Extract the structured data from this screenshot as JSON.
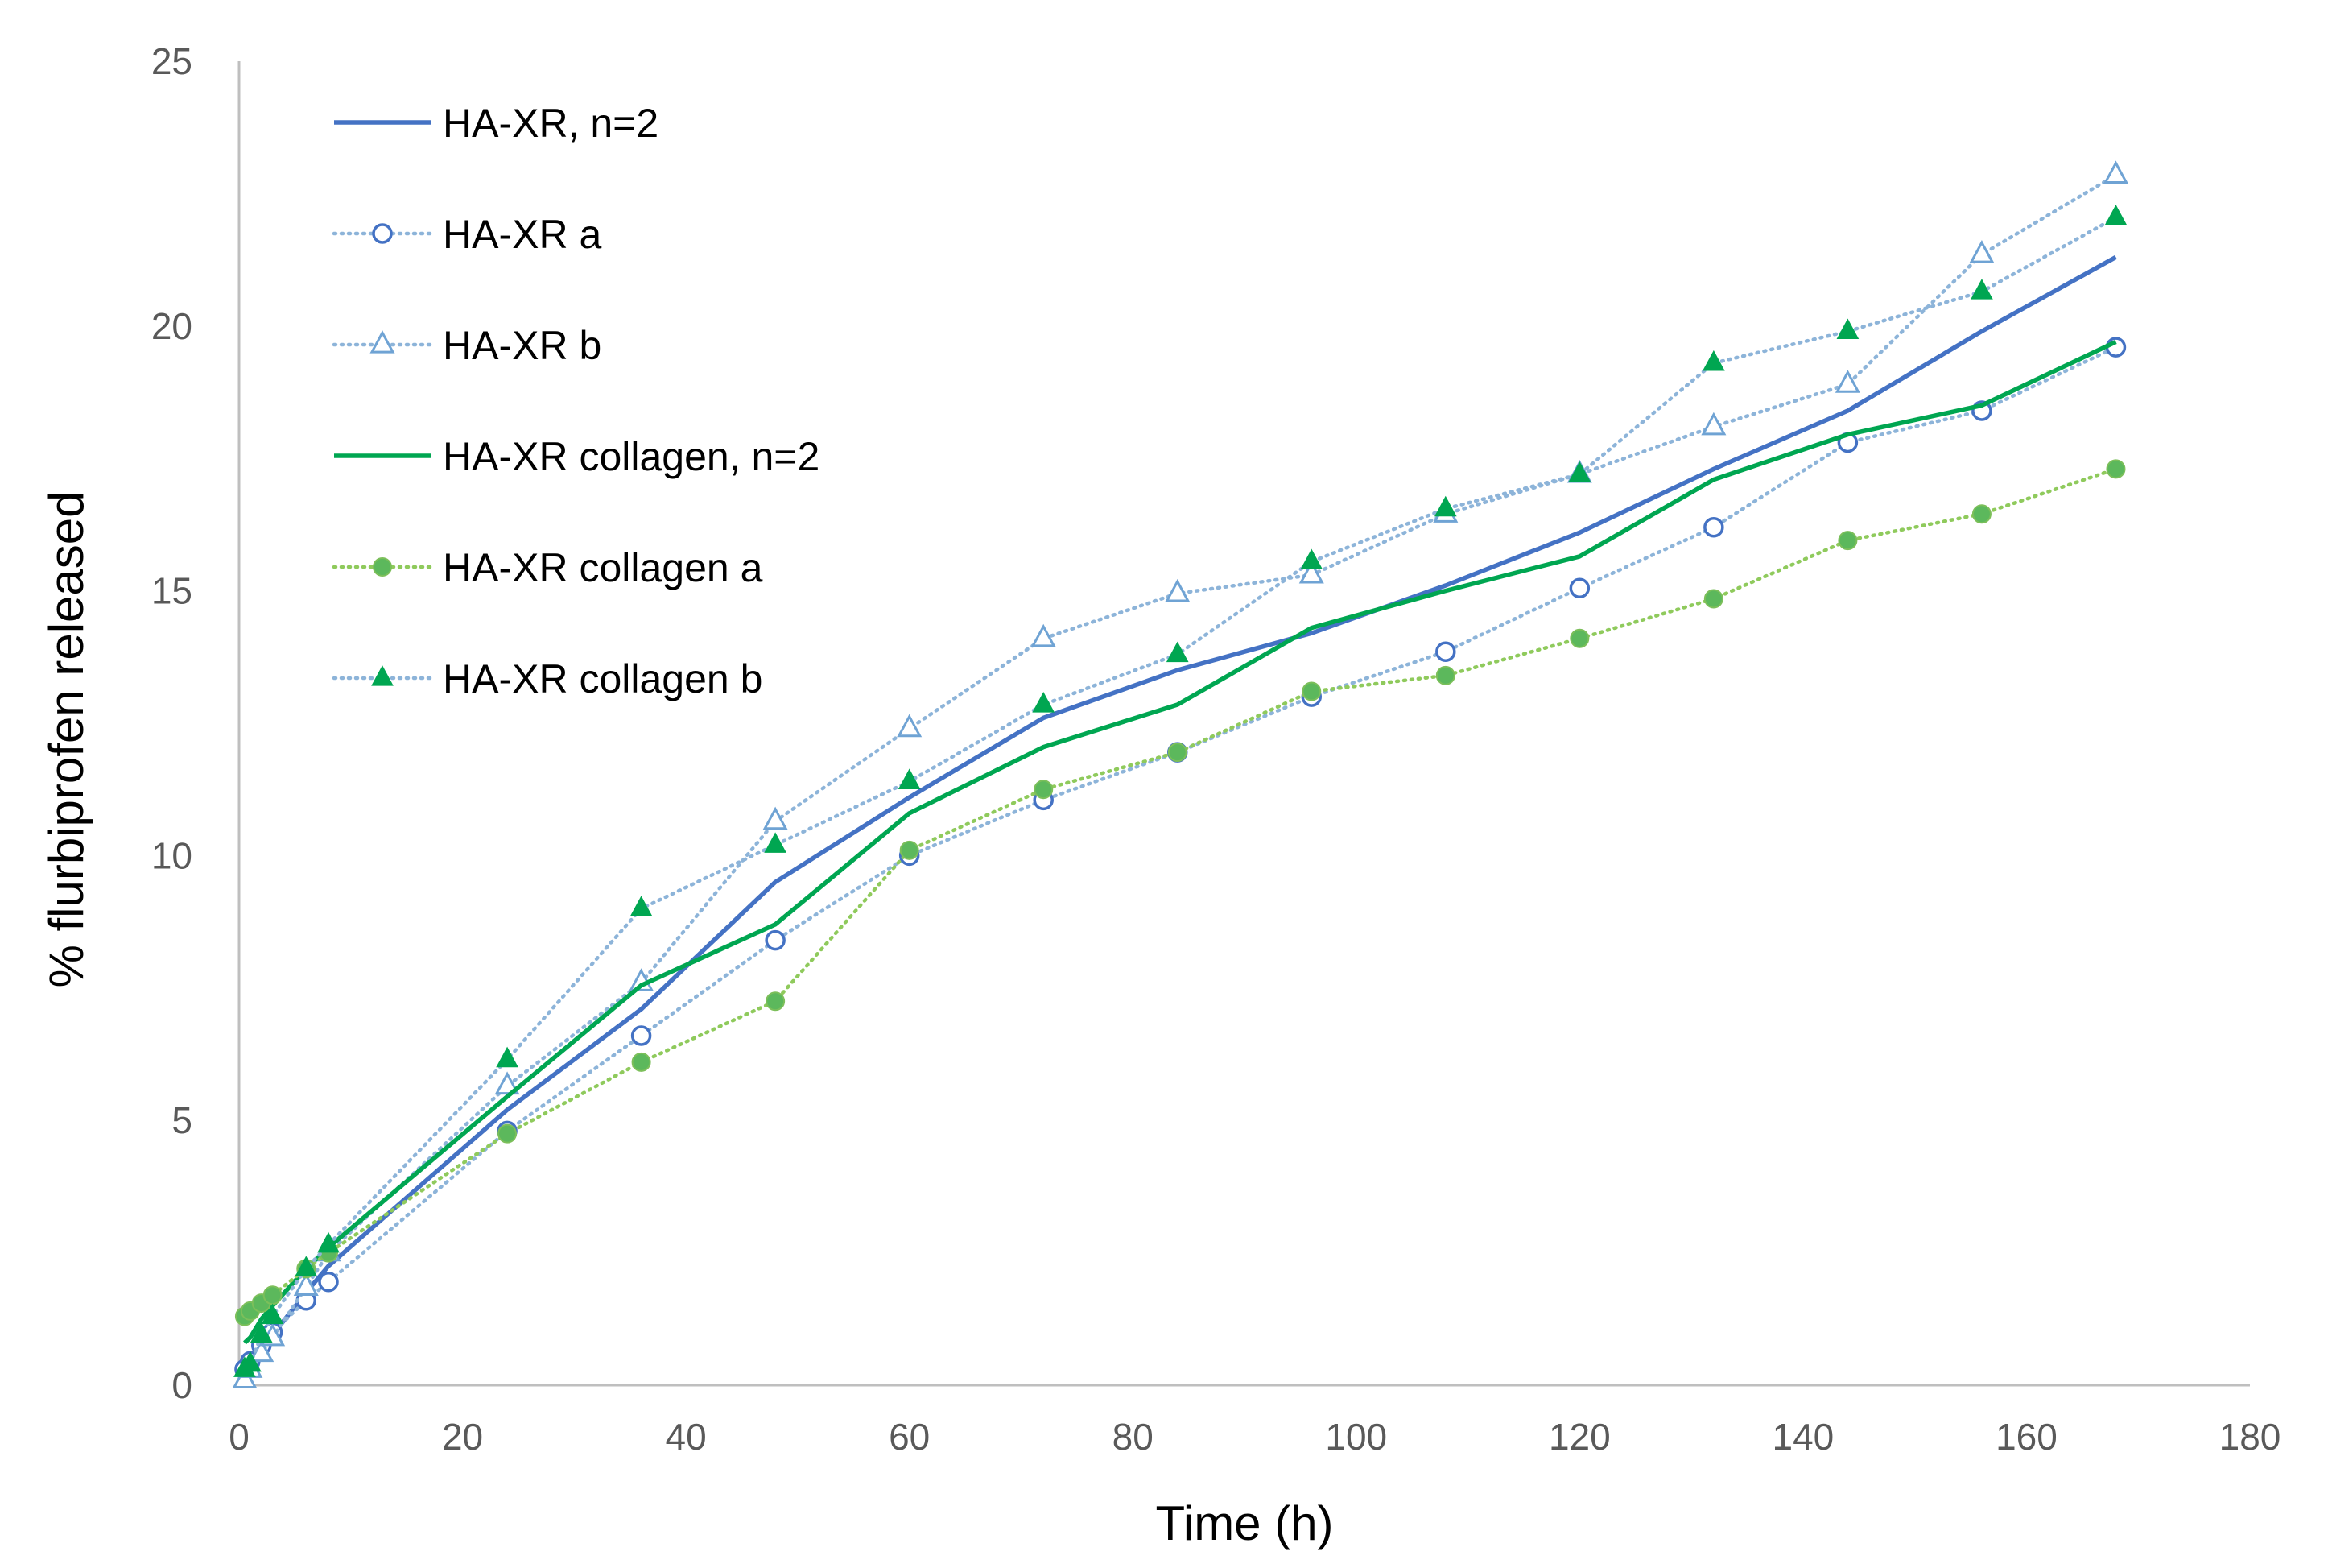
{
  "chart_data": {
    "type": "line",
    "title": "",
    "xlabel": "Time (h)",
    "ylabel": "% flurbiprofen released",
    "xlim": [
      0,
      180
    ],
    "ylim": [
      0,
      25
    ],
    "xticks": [
      0,
      20,
      40,
      60,
      80,
      100,
      120,
      140,
      160,
      180
    ],
    "yticks": [
      0,
      5,
      10,
      15,
      20,
      25
    ],
    "grid": false,
    "legend_position": "top-left",
    "colors": {
      "blue": "#4472c4",
      "light_blue": "#8db4d9",
      "green": "#00a651",
      "light_green": "#8fca5c",
      "axis": "#bfbfbf"
    },
    "series": [
      {
        "name": "HA-XR, n=2",
        "style": "solid",
        "color": "#4472c4",
        "marker": "none",
        "x": [
          0.5,
          1,
          2,
          3,
          6,
          8,
          24,
          36,
          48,
          60,
          72,
          84,
          96,
          108,
          120,
          132,
          144,
          156,
          168
        ],
        "y": [
          0.25,
          0.4,
          0.7,
          0.95,
          1.75,
          2.25,
          5.2,
          7.1,
          9.5,
          11.1,
          12.6,
          13.5,
          14.2,
          15.1,
          16.1,
          17.3,
          18.4,
          19.9,
          21.3
        ]
      },
      {
        "name": "HA-XR a",
        "style": "dotted",
        "color": "#8db4d9",
        "marker": "open-circle",
        "marker_color": "#4472c4",
        "x": [
          0.5,
          1,
          2,
          3,
          6,
          8,
          24,
          36,
          48,
          60,
          72,
          84,
          96,
          108,
          120,
          132,
          144,
          156,
          168
        ],
        "y": [
          0.3,
          0.45,
          0.75,
          1.0,
          1.6,
          1.95,
          4.8,
          6.6,
          8.4,
          10.0,
          11.05,
          11.95,
          13.0,
          13.85,
          15.05,
          16.2,
          17.8,
          18.4,
          19.6
        ]
      },
      {
        "name": "HA-XR b",
        "style": "dotted",
        "color": "#8db4d9",
        "marker": "open-triangle",
        "marker_color": "#6fa3d4",
        "x": [
          0.5,
          1,
          2,
          3,
          6,
          8,
          24,
          36,
          48,
          60,
          72,
          84,
          96,
          108,
          120,
          132,
          144,
          156,
          168
        ],
        "y": [
          0.1,
          0.3,
          0.6,
          0.9,
          1.85,
          2.5,
          5.65,
          7.6,
          10.65,
          12.4,
          14.1,
          14.95,
          15.3,
          16.45,
          17.2,
          18.1,
          18.9,
          21.35,
          22.85
        ]
      },
      {
        "name": "HA-XR collagen, n=2",
        "style": "solid",
        "color": "#00a651",
        "marker": "none",
        "x": [
          0.5,
          1,
          2,
          3,
          6,
          8,
          24,
          36,
          48,
          60,
          72,
          84,
          96,
          108,
          120,
          132,
          144,
          156,
          168
        ],
        "y": [
          0.8,
          0.9,
          1.25,
          1.5,
          2.2,
          2.6,
          5.45,
          7.55,
          8.7,
          10.8,
          12.05,
          12.85,
          14.3,
          15.0,
          15.65,
          17.1,
          17.95,
          18.5,
          19.7
        ]
      },
      {
        "name": "HA-XR collagen a",
        "style": "dotted",
        "color": "#8fca5c",
        "marker": "filled-circle",
        "marker_color": "#5cb85c",
        "x": [
          0.5,
          1,
          2,
          3,
          6,
          8,
          24,
          36,
          48,
          60,
          72,
          84,
          96,
          108,
          120,
          132,
          144,
          156,
          168
        ],
        "y": [
          1.3,
          1.4,
          1.55,
          1.7,
          2.2,
          2.5,
          4.75,
          6.1,
          7.25,
          10.1,
          11.25,
          11.95,
          13.1,
          13.4,
          14.1,
          14.85,
          15.95,
          16.45,
          17.3
        ]
      },
      {
        "name": "HA-XR collagen b",
        "style": "dotted",
        "color": "#8db4d9",
        "marker": "filled-triangle",
        "marker_color": "#00a651",
        "x": [
          0.5,
          1,
          2,
          3,
          6,
          8,
          24,
          36,
          48,
          60,
          72,
          84,
          96,
          108,
          120,
          132,
          144,
          156,
          168
        ],
        "y": [
          0.3,
          0.4,
          0.95,
          1.3,
          2.2,
          2.65,
          6.15,
          9.0,
          10.2,
          11.4,
          12.85,
          13.8,
          15.55,
          16.55,
          17.2,
          19.3,
          19.9,
          20.65,
          22.05
        ]
      }
    ]
  }
}
